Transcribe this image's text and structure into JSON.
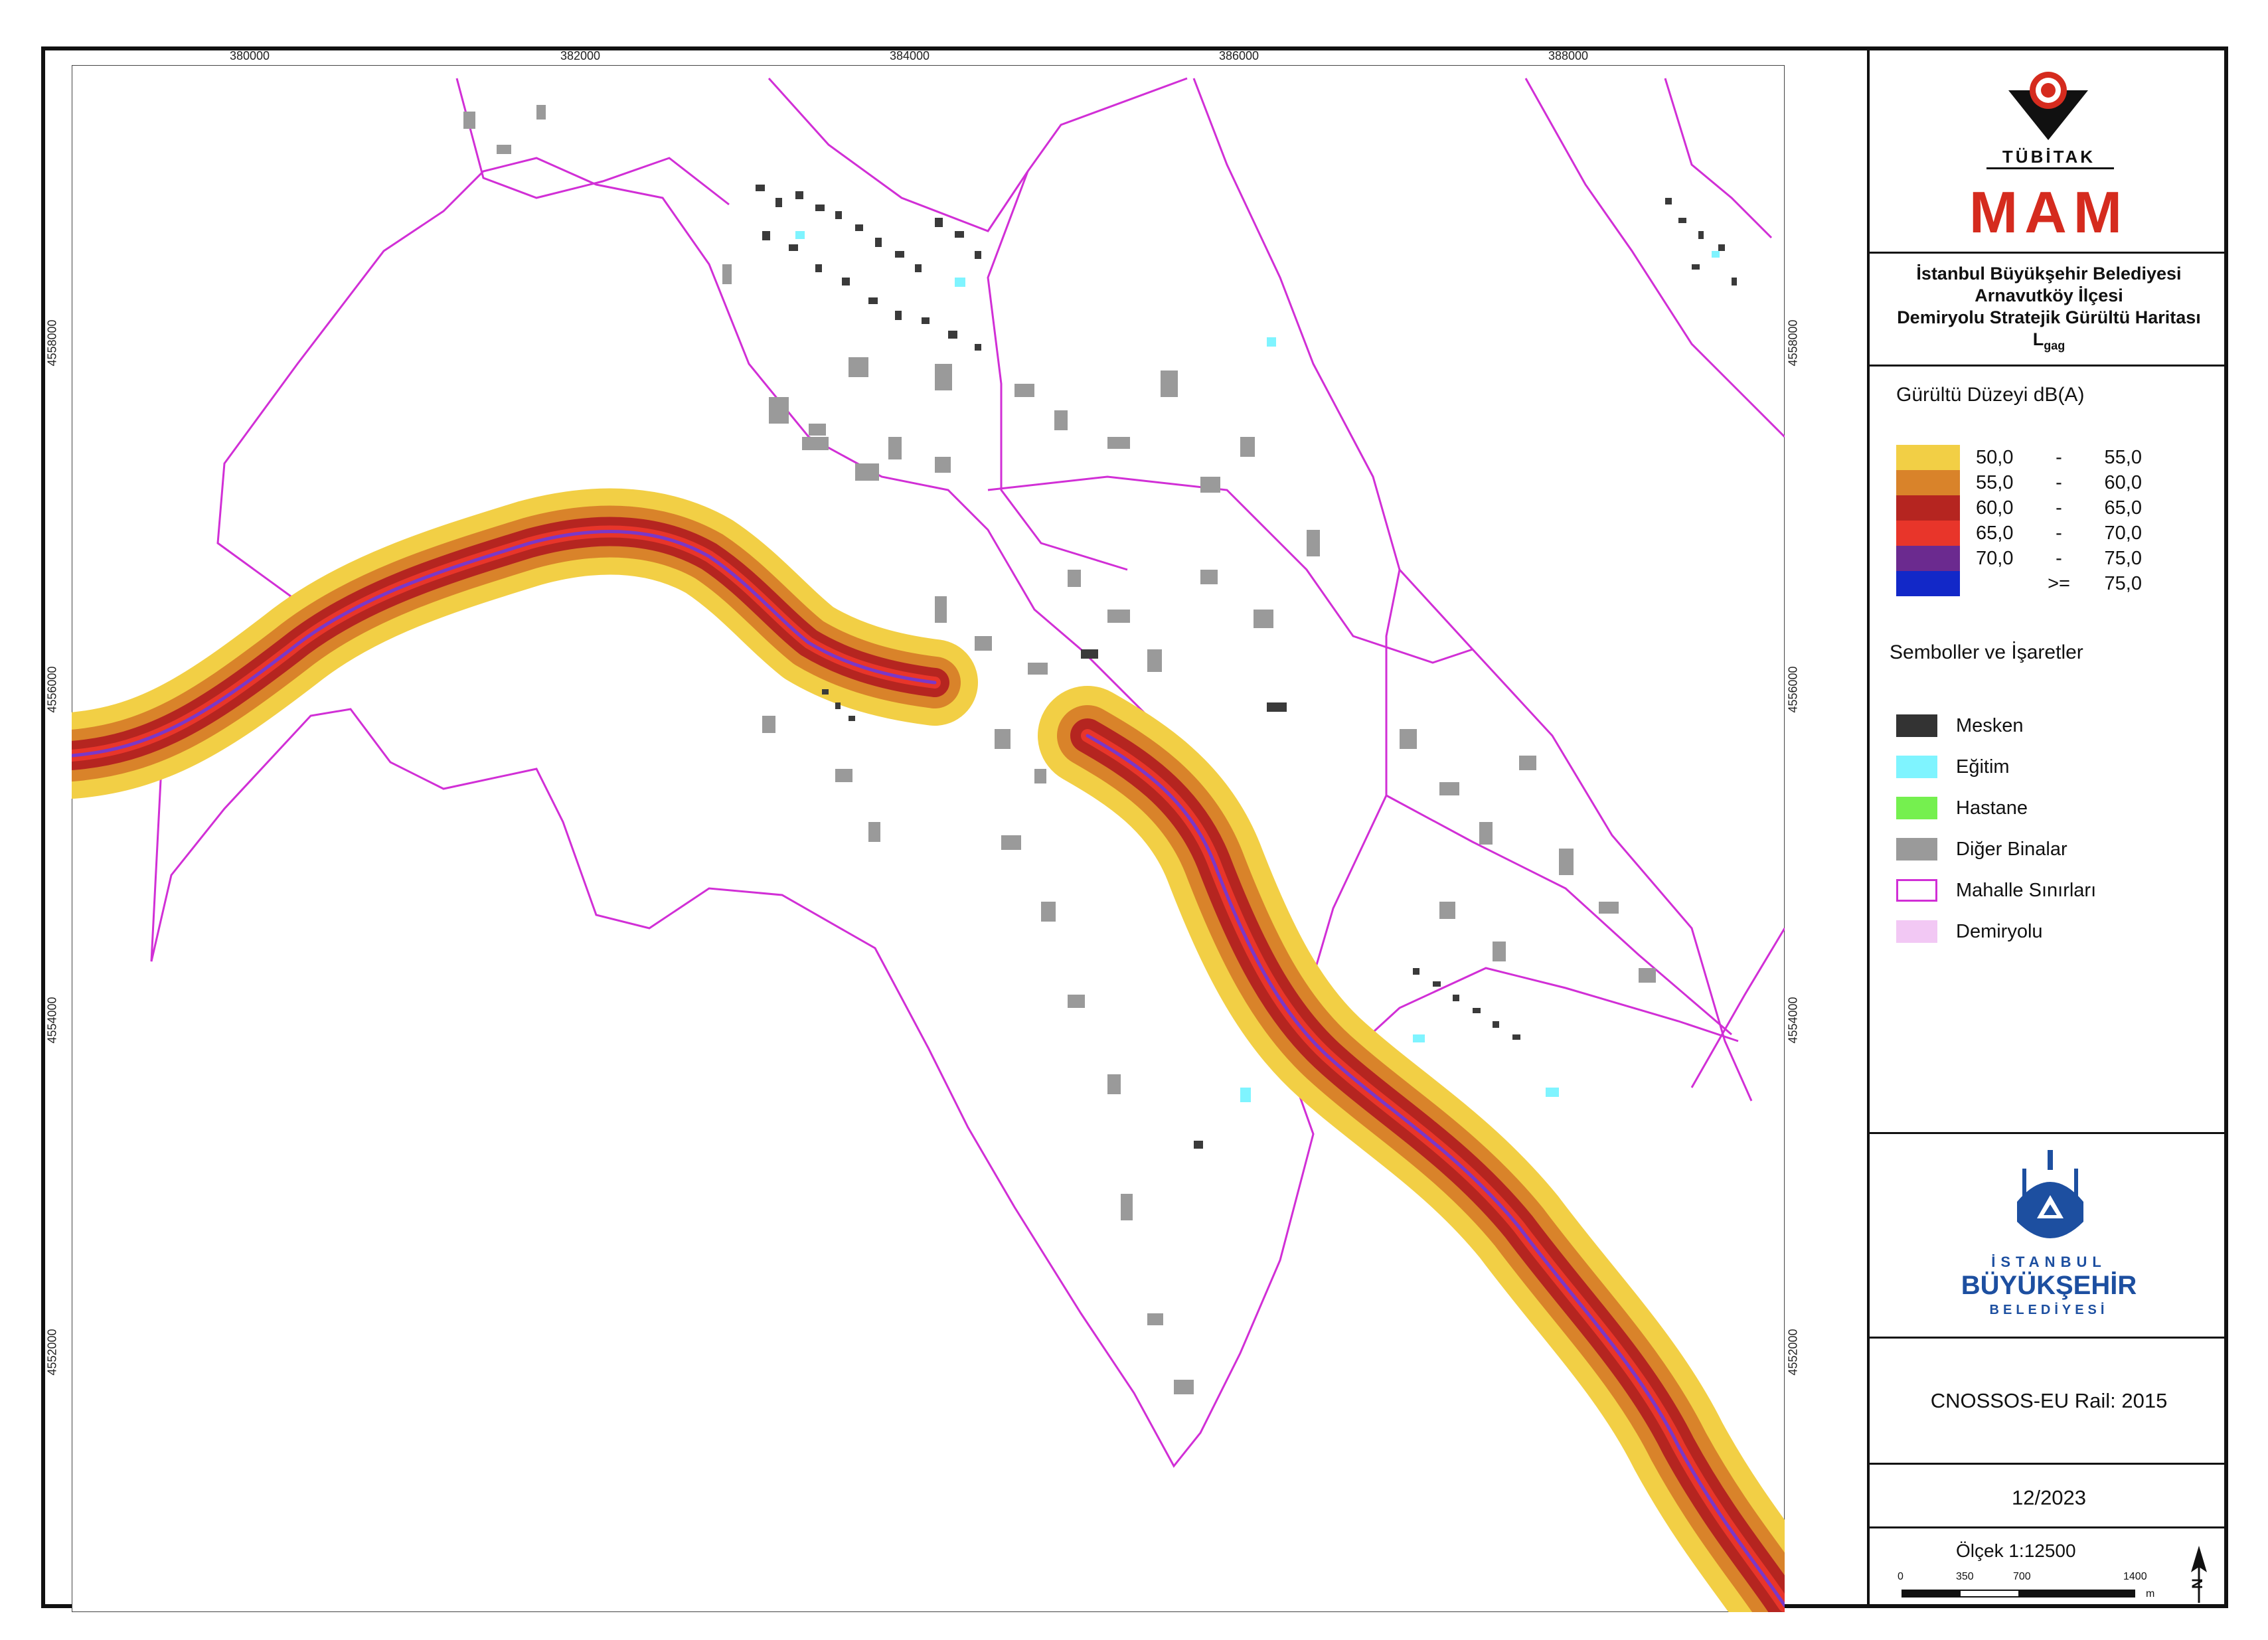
{
  "map": {
    "x_ticks": [
      "380000",
      "382000",
      "384000",
      "386000",
      "388000"
    ],
    "y_ticks": [
      "4558000",
      "4556000",
      "4554000",
      "4552000"
    ],
    "colors": {
      "boundary": "#d12fd6",
      "railway": "#7a38c8",
      "building_gray": "#9a9a9a",
      "building_dark": "#3a3a3a",
      "education": "#7ff4ff"
    }
  },
  "logo_top": {
    "brand": "TÜBİTAK",
    "name": "MAM",
    "color": "#d52b1e"
  },
  "title": {
    "line1": "İstanbul Büyükşehir Belediyesi",
    "line2": "Arnavutköy İlçesi",
    "line3": "Demiryolu Stratejik Gürültü Haritası",
    "line4_main": "L",
    "line4_sub": "gag"
  },
  "legend": {
    "heading": "Gürültü Düzeyi dB(A)",
    "classes": [
      {
        "from": "50,0",
        "sep": "-",
        "to": "55,0",
        "color": "#f2cf45"
      },
      {
        "from": "55,0",
        "sep": "-",
        "to": "60,0",
        "color": "#d9832a"
      },
      {
        "from": "60,0",
        "sep": "-",
        "to": "65,0",
        "color": "#b52520"
      },
      {
        "from": "65,0",
        "sep": "-",
        "to": "70,0",
        "color": "#e8352a"
      },
      {
        "from": "70,0",
        "sep": "-",
        "to": "75,0",
        "color": "#6b2a8f"
      },
      {
        "from": "",
        "sep": ">=",
        "to": "75,0",
        "color": "#1228c8"
      }
    ]
  },
  "symbols": {
    "heading": "Semboller ve İşaretler",
    "items": [
      {
        "label": "Mesken",
        "color": "#333333"
      },
      {
        "label": "Eğitim",
        "color": "#7ff4ff"
      },
      {
        "label": "Hastane",
        "color": "#75f04f"
      },
      {
        "label": "Diğer Binalar",
        "color": "#9a9a9a"
      },
      {
        "label": "Mahalle Sınırları",
        "color": "#ffffff"
      },
      {
        "label": "Demiryolu",
        "color": "#f2c8f4"
      }
    ]
  },
  "logo_bottom": {
    "line1": "İSTANBUL",
    "line2": "BÜYÜKŞEHİR",
    "line3": "BELEDİYESİ",
    "color": "#1d4fa0"
  },
  "model": "CNOSSOS-EU Rail: 2015",
  "date": "12/2023",
  "scale": {
    "label": "Ölçek 1:12500",
    "ticks": [
      "0",
      "350",
      "700",
      "1400"
    ],
    "unit": "m",
    "north": "N"
  }
}
